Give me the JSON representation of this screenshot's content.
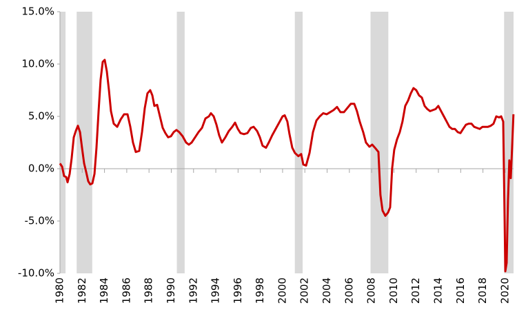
{
  "chart_data": {
    "type": "line",
    "color": "#cc0000",
    "recession_color": "#d9d9d9",
    "x": [
      1980.0,
      1980.19,
      1980.37,
      1980.56,
      1980.68,
      1980.87,
      1981.05,
      1981.24,
      1981.42,
      1981.61,
      1981.8,
      1981.98,
      1982.17,
      1982.35,
      1982.54,
      1982.72,
      1982.91,
      1983.1,
      1983.28,
      1983.47,
      1983.65,
      1983.84,
      1984.02,
      1984.21,
      1984.4,
      1984.58,
      1984.83,
      1985.14,
      1985.45,
      1985.76,
      1986.07,
      1986.32,
      1986.56,
      1986.81,
      1987.12,
      1987.37,
      1987.62,
      1987.86,
      1988.11,
      1988.3,
      1988.48,
      1988.73,
      1988.98,
      1989.23,
      1989.47,
      1989.72,
      1989.97,
      1990.22,
      1990.46,
      1990.71,
      1991.02,
      1991.33,
      1991.58,
      1991.83,
      1992.14,
      1992.45,
      1992.76,
      1993.07,
      1993.38,
      1993.56,
      1993.81,
      1994.06,
      1994.3,
      1994.55,
      1994.86,
      1995.17,
      1995.48,
      1995.73,
      1995.98,
      1996.22,
      1996.53,
      1996.84,
      1997.15,
      1997.4,
      1997.71,
      1997.96,
      1998.2,
      1998.51,
      1998.76,
      1999.07,
      1999.38,
      1999.69,
      2000.0,
      2000.19,
      2000.43,
      2000.62,
      2000.87,
      2001.11,
      2001.42,
      2001.67,
      2001.86,
      2002.11,
      2002.42,
      2002.73,
      2003.04,
      2003.34,
      2003.65,
      2003.96,
      2004.27,
      2004.58,
      2004.89,
      2005.2,
      2005.51,
      2005.82,
      2006.13,
      2006.44,
      2006.68,
      2006.93,
      2007.24,
      2007.49,
      2007.8,
      2008.05,
      2008.3,
      2008.61,
      2008.79,
      2008.98,
      2009.23,
      2009.47,
      2009.66,
      2009.84,
      2010.03,
      2010.28,
      2010.53,
      2010.77,
      2011.02,
      2011.27,
      2011.52,
      2011.76,
      2012.01,
      2012.26,
      2012.51,
      2012.76,
      2013.0,
      2013.25,
      2013.5,
      2013.75,
      2013.99,
      2014.24,
      2014.49,
      2014.74,
      2014.99,
      2015.23,
      2015.48,
      2015.73,
      2015.98,
      2016.22,
      2016.47,
      2016.72,
      2016.97,
      2017.21,
      2017.46,
      2017.71,
      2017.96,
      2018.21,
      2018.45,
      2018.7,
      2018.95,
      2019.2,
      2019.45,
      2019.64,
      2019.82,
      2019.95,
      2020.01,
      2020.13,
      2020.25,
      2020.37,
      2020.5,
      2020.62,
      2020.74
    ],
    "values": [
      0.5,
      0.2,
      -0.7,
      -0.8,
      -1.3,
      -0.5,
      1.0,
      3.0,
      3.6,
      4.1,
      3.5,
      2.0,
      0.5,
      -0.3,
      -1.2,
      -1.5,
      -1.4,
      -0.5,
      2.0,
      5.5,
      8.5,
      10.2,
      10.4,
      9.3,
      7.5,
      5.5,
      4.3,
      4.0,
      4.7,
      5.2,
      5.2,
      4.0,
      2.5,
      1.6,
      1.7,
      3.5,
      5.8,
      7.2,
      7.5,
      7.0,
      6.0,
      6.1,
      5.0,
      3.9,
      3.4,
      3.0,
      3.1,
      3.5,
      3.7,
      3.5,
      3.1,
      2.5,
      2.3,
      2.5,
      3.0,
      3.5,
      3.9,
      4.8,
      5.0,
      5.3,
      5.0,
      4.2,
      3.2,
      2.5,
      3.0,
      3.6,
      4.0,
      4.4,
      3.8,
      3.4,
      3.3,
      3.4,
      3.9,
      4.0,
      3.6,
      3.0,
      2.2,
      2.0,
      2.5,
      3.2,
      3.8,
      4.4,
      5.0,
      5.1,
      4.5,
      3.3,
      2.0,
      1.5,
      1.2,
      1.4,
      0.4,
      0.3,
      1.5,
      3.5,
      4.6,
      5.0,
      5.3,
      5.2,
      5.4,
      5.6,
      5.9,
      5.4,
      5.4,
      5.8,
      6.2,
      6.2,
      5.5,
      4.5,
      3.5,
      2.5,
      2.1,
      2.3,
      2.0,
      1.6,
      -2.5,
      -4.0,
      -4.5,
      -4.2,
      -3.7,
      0.0,
      1.8,
      2.8,
      3.5,
      4.5,
      6.0,
      6.5,
      7.2,
      7.7,
      7.5,
      7.0,
      6.8,
      6.0,
      5.7,
      5.5,
      5.6,
      5.7,
      6.0,
      5.5,
      5.0,
      4.5,
      4.0,
      3.8,
      3.8,
      3.5,
      3.4,
      3.8,
      4.2,
      4.3,
      4.3,
      4.0,
      3.9,
      3.8,
      4.0,
      4.0,
      4.0,
      4.1,
      4.3,
      5.0,
      4.9,
      5.0,
      4.5,
      -5.0,
      -9.8,
      -9.0,
      -3.0,
      0.8,
      -0.9,
      2.0,
      5.2
    ],
    "recessions": [
      [
        1980.0,
        1980.5
      ],
      [
        1981.5,
        1982.9
      ],
      [
        1990.5,
        1991.2
      ],
      [
        2001.1,
        2001.8
      ],
      [
        2007.9,
        2009.5
      ],
      [
        2019.9,
        2020.75
      ]
    ],
    "xlim": [
      1980,
      2020.75
    ],
    "xticks": [
      1980,
      1982,
      1984,
      1986,
      1988,
      1990,
      1992,
      1994,
      1996,
      1998,
      2000,
      2002,
      2004,
      2006,
      2008,
      2010,
      2012,
      2014,
      2016,
      2018,
      2020
    ],
    "ylim": [
      -10,
      15
    ],
    "yticks": [
      {
        "value": -10,
        "label": "-10.0%"
      },
      {
        "value": -5,
        "label": "-5.0%"
      },
      {
        "value": 0,
        "label": "0.0%"
      },
      {
        "value": 5,
        "label": "5.0%"
      },
      {
        "value": 10,
        "label": "10.0%"
      },
      {
        "value": 15,
        "label": "15.0%"
      }
    ]
  }
}
